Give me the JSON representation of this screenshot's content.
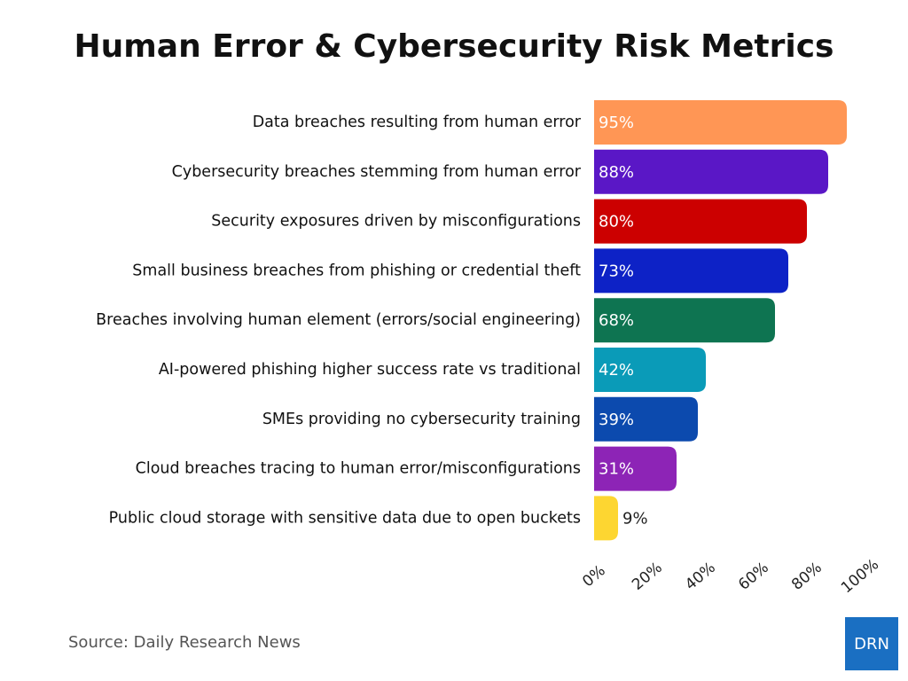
{
  "chart_data": {
    "type": "barh",
    "title": "Human Error & Cybersecurity Risk Metrics",
    "categories": [
      "Data breaches resulting from human error",
      "Cybersecurity breaches stemming from human error",
      "Security exposures driven by misconfigurations",
      "Small business breaches from phishing or credential theft",
      "Breaches involving human element (errors/social engineering)",
      "AI-powered phishing higher success rate vs traditional",
      "SMEs providing no cybersecurity training",
      "Cloud breaches tracing to human error/misconfigurations",
      "Public cloud storage with sensitive data due to open buckets"
    ],
    "values": [
      95,
      88,
      80,
      73,
      68,
      42,
      39,
      31,
      9
    ],
    "value_labels": [
      "95%",
      "88%",
      "80%",
      "73%",
      "68%",
      "42%",
      "39%",
      "31%",
      "9%"
    ],
    "colors": [
      "#ff9655",
      "#5a17c6",
      "#cc0000",
      "#0d22c6",
      "#0e7451",
      "#0a9bb8",
      "#0c4aae",
      "#8d24b6",
      "#fdd631"
    ],
    "xlim": [
      0,
      100
    ],
    "xticks": [
      {
        "value": 0,
        "label": "0%"
      },
      {
        "value": 20,
        "label": "20%"
      },
      {
        "value": 40,
        "label": "40%"
      },
      {
        "value": 60,
        "label": "60%"
      },
      {
        "value": 80,
        "label": "80%"
      },
      {
        "value": 100,
        "label": "100%"
      }
    ],
    "grid": false,
    "source": "Source: Daily Research News",
    "logo": "DRN"
  }
}
